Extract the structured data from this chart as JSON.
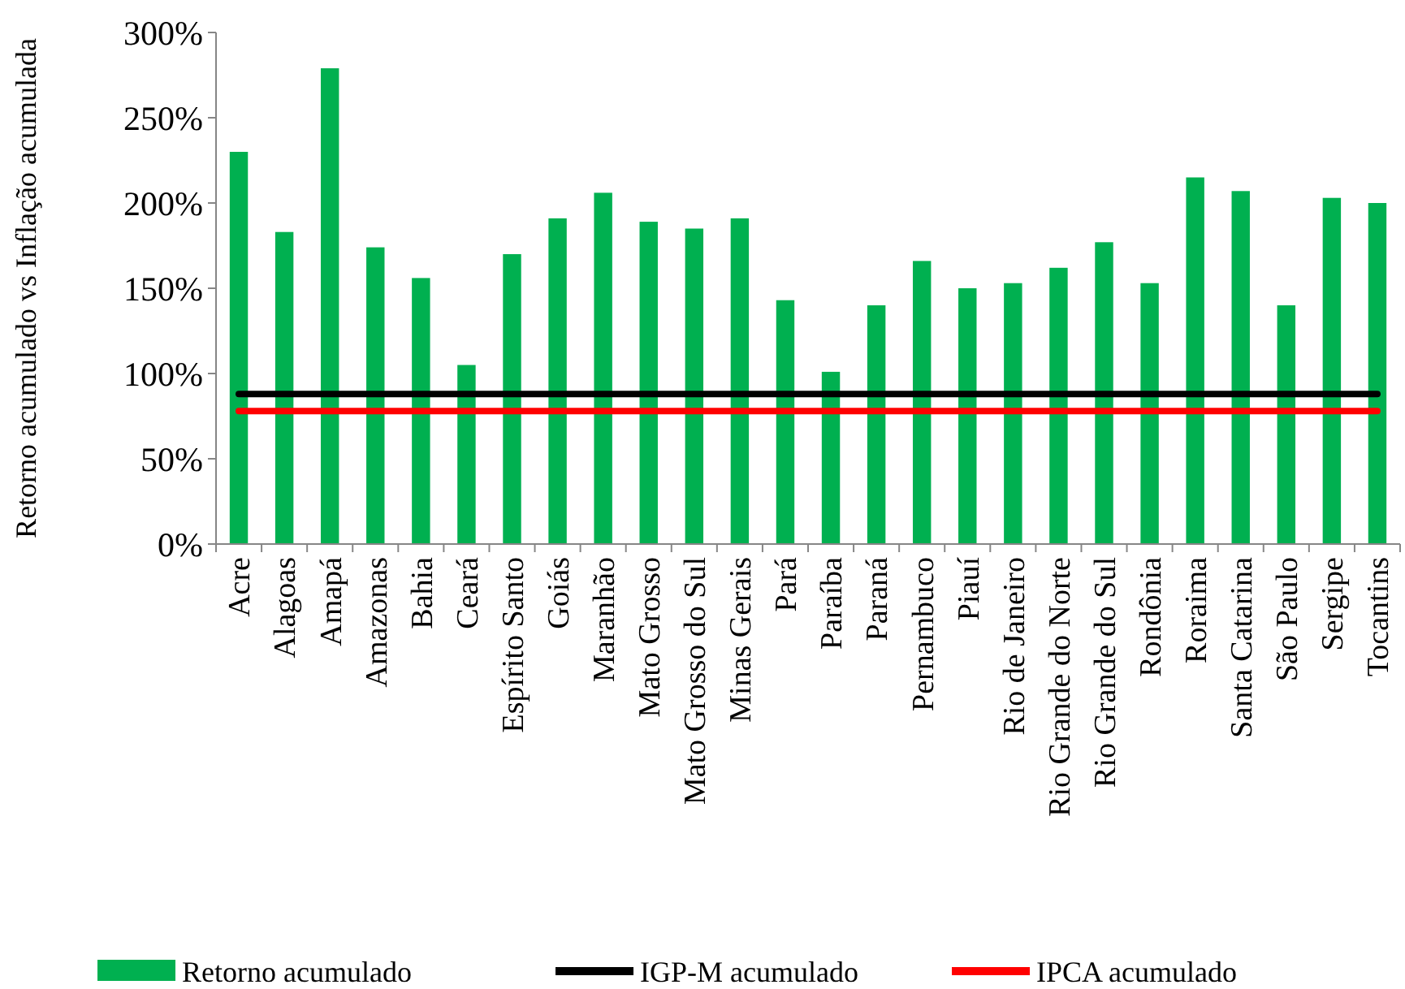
{
  "chart_data": {
    "type": "bar",
    "ylabel": "Retorno acumulado vs Inflação acumulada",
    "categories": [
      "Acre",
      "Alagoas",
      "Amapá",
      "Amazonas",
      "Bahia",
      "Ceará",
      "Espírito Santo",
      "Goiás",
      "Maranhão",
      "Mato Grosso",
      "Mato Grosso do Sul",
      "Minas Gerais",
      "Pará",
      "Paraíba",
      "Paraná",
      "Pernambuco",
      "Piauí",
      "Rio de Janeiro",
      "Rio Grande do Norte",
      "Rio Grande do Sul",
      "Rondônia",
      "Roraima",
      "Santa Catarina",
      "São Paulo",
      "Sergipe",
      "Tocantins"
    ],
    "series": [
      {
        "name": "Retorno acumulado",
        "color": "#00b050",
        "values": [
          230,
          183,
          279,
          174,
          156,
          105,
          170,
          191,
          206,
          189,
          185,
          191,
          143,
          101,
          140,
          166,
          150,
          153,
          162,
          177,
          153,
          215,
          207,
          140,
          203,
          200
        ]
      },
      {
        "name": "IGP-M acumulado",
        "type": "line",
        "color": "#000000",
        "values": [
          88,
          88,
          88,
          88,
          88,
          88,
          88,
          88,
          88,
          88,
          88,
          88,
          88,
          88,
          88,
          88,
          88,
          88,
          88,
          88,
          88,
          88,
          88,
          88,
          88,
          88
        ]
      },
      {
        "name": "IPCA acumulado",
        "type": "line",
        "color": "#ff0000",
        "values": [
          78,
          78,
          78,
          78,
          78,
          78,
          78,
          78,
          78,
          78,
          78,
          78,
          78,
          78,
          78,
          78,
          78,
          78,
          78,
          78,
          78,
          78,
          78,
          78,
          78,
          78
        ]
      }
    ],
    "ylim": [
      0,
      300
    ],
    "yticks": [
      {
        "value": 0,
        "label": "0%"
      },
      {
        "value": 50,
        "label": "50%"
      },
      {
        "value": 100,
        "label": "100%"
      },
      {
        "value": 150,
        "label": "150%"
      },
      {
        "value": 200,
        "label": "200%"
      },
      {
        "value": 250,
        "label": "250%"
      },
      {
        "value": 300,
        "label": "300%"
      }
    ],
    "grid": false,
    "legend": "bottom",
    "marker": "none",
    "line_style": "solid"
  }
}
